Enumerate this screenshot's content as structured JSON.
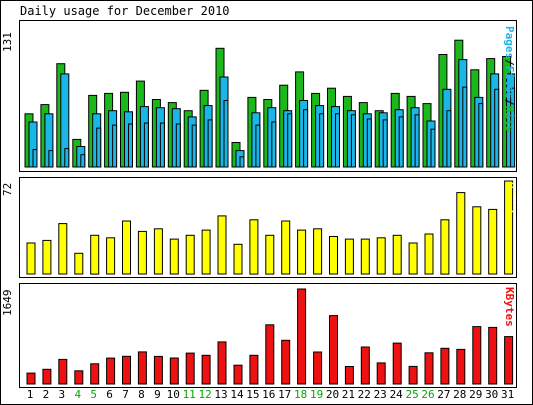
{
  "title": "Daily usage for December 2010",
  "colors": {
    "hits": "#1bb81b",
    "files": "#1ab6e8",
    "visits": "#ffff00",
    "kbytes": "#ee1111",
    "weekday_label": "#000000",
    "weekend_label": "#00aa00"
  },
  "chart_data": [
    {
      "type": "bar",
      "panel": "pages-files-hits",
      "ymax_label": "131",
      "ylim": [
        0,
        131
      ],
      "categories": [
        "1",
        "2",
        "3",
        "4",
        "5",
        "6",
        "7",
        "8",
        "9",
        "10",
        "11",
        "12",
        "13",
        "14",
        "15",
        "16",
        "17",
        "18",
        "19",
        "20",
        "21",
        "22",
        "23",
        "24",
        "25",
        "26",
        "27",
        "28",
        "29",
        "30",
        "31"
      ],
      "weekend_days": [
        "4",
        "5",
        "11",
        "12",
        "18",
        "19",
        "25",
        "26"
      ],
      "series_label": {
        "pages": "Pages",
        "files": "Files",
        "hits": "Hits",
        "sep": "/"
      },
      "series": [
        {
          "name": "Hits",
          "values": [
            52,
            61,
            101,
            27,
            70,
            72,
            73,
            84,
            66,
            63,
            55,
            75,
            116,
            24,
            68,
            66,
            80,
            93,
            72,
            77,
            69,
            63,
            55,
            72,
            69,
            62,
            110,
            124,
            95,
            106,
            108
          ]
        },
        {
          "name": "Files",
          "values": [
            44,
            52,
            91,
            20,
            52,
            55,
            54,
            59,
            58,
            57,
            49,
            60,
            88,
            16,
            53,
            58,
            55,
            65,
            60,
            59,
            55,
            52,
            53,
            56,
            58,
            45,
            76,
            105,
            68,
            91,
            91
          ]
        },
        {
          "name": "Pages",
          "values": [
            17,
            16,
            18,
            12,
            38,
            41,
            42,
            43,
            43,
            42,
            41,
            46,
            65,
            10,
            41,
            44,
            52,
            56,
            52,
            52,
            51,
            47,
            46,
            49,
            51,
            37,
            55,
            78,
            62,
            76,
            77
          ]
        }
      ]
    },
    {
      "type": "bar",
      "panel": "visits",
      "ymax_label": "72",
      "ylim": [
        0,
        72
      ],
      "series_label": "Visits",
      "series": [
        {
          "name": "Visits",
          "values": [
            24,
            26,
            39,
            16,
            30,
            28,
            41,
            33,
            35,
            27,
            30,
            34,
            45,
            23,
            42,
            30,
            41,
            34,
            35,
            29,
            27,
            27,
            28,
            30,
            24,
            31,
            42,
            63,
            52,
            50,
            72
          ]
        }
      ]
    },
    {
      "type": "bar",
      "panel": "kbytes",
      "ymax_label": "1649",
      "ylim": [
        0,
        1649
      ],
      "series_label": "KBytes",
      "series": [
        {
          "name": "KBytes",
          "values": [
            190,
            256,
            427,
            229,
            351,
            450,
            480,
            557,
            479,
            452,
            537,
            498,
            731,
            326,
            498,
            1028,
            758,
            1649,
            555,
            1188,
            303,
            642,
            367,
            710,
            305,
            541,
            620,
            600,
            996,
            983,
            823
          ]
        }
      ]
    }
  ]
}
